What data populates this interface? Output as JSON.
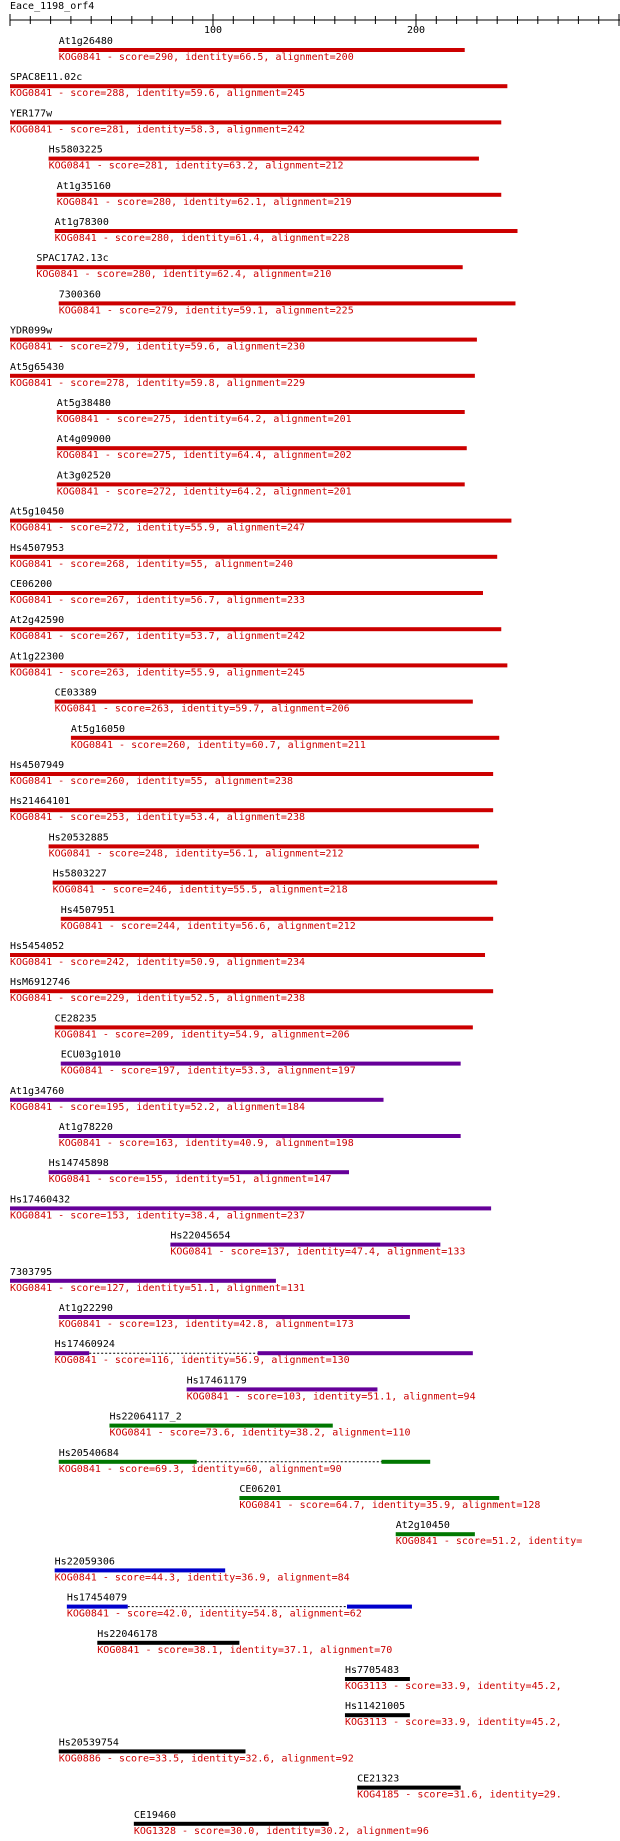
{
  "query": "Eace_1198_orf4",
  "ruler": {
    "ticks": [
      100,
      200
    ]
  },
  "colors": {
    "line": "#000000",
    "label": "#cc0000",
    "red": "#cc0000",
    "purple": "#660099",
    "green": "#007700",
    "blue": "#0000cc",
    "black": "#000000"
  },
  "hits": [
    {
      "name": "At1g26480",
      "desc": "KOG0841 - score=290, identity=66.5, alignment=200",
      "color": "red",
      "segments": [
        [
          24,
          224
        ]
      ]
    },
    {
      "name": "SPAC8E11.02c",
      "desc": "KOG0841 - score=288, identity=59.6, alignment=245",
      "color": "red",
      "segments": [
        [
          0,
          245
        ]
      ]
    },
    {
      "name": "YER177w",
      "desc": "KOG0841 - score=281, identity=58.3, alignment=242",
      "color": "red",
      "segments": [
        [
          0,
          242
        ]
      ]
    },
    {
      "name": "Hs5803225",
      "desc": "KOG0841 - score=281, identity=63.2, alignment=212",
      "color": "red",
      "segments": [
        [
          19,
          231
        ]
      ]
    },
    {
      "name": "At1g35160",
      "desc": "KOG0841 - score=280, identity=62.1, alignment=219",
      "color": "red",
      "segments": [
        [
          23,
          242
        ]
      ]
    },
    {
      "name": "At1g78300",
      "desc": "KOG0841 - score=280, identity=61.4, alignment=228",
      "color": "red",
      "segments": [
        [
          22,
          250
        ]
      ]
    },
    {
      "name": "SPAC17A2.13c",
      "desc": "KOG0841 - score=280, identity=62.4, alignment=210",
      "color": "red",
      "segments": [
        [
          13,
          223
        ]
      ]
    },
    {
      "name": "7300360",
      "desc": "KOG0841 - score=279, identity=59.1, alignment=225",
      "color": "red",
      "segments": [
        [
          24,
          249
        ]
      ]
    },
    {
      "name": "YDR099w",
      "desc": "KOG0841 - score=279, identity=59.6, alignment=230",
      "color": "red",
      "segments": [
        [
          0,
          230
        ]
      ]
    },
    {
      "name": "At5g65430",
      "desc": "KOG0841 - score=278, identity=59.8, alignment=229",
      "color": "red",
      "segments": [
        [
          0,
          229
        ]
      ]
    },
    {
      "name": "At5g38480",
      "desc": "KOG0841 - score=275, identity=64.2, alignment=201",
      "color": "red",
      "segments": [
        [
          23,
          224
        ]
      ]
    },
    {
      "name": "At4g09000",
      "desc": "KOG0841 - score=275, identity=64.4, alignment=202",
      "color": "red",
      "segments": [
        [
          23,
          225
        ]
      ]
    },
    {
      "name": "At3g02520",
      "desc": "KOG0841 - score=272, identity=64.2, alignment=201",
      "color": "red",
      "segments": [
        [
          23,
          224
        ]
      ]
    },
    {
      "name": "At5g10450",
      "desc": "KOG0841 - score=272, identity=55.9, alignment=247",
      "color": "red",
      "segments": [
        [
          0,
          247
        ]
      ]
    },
    {
      "name": "Hs4507953",
      "desc": "KOG0841 - score=268, identity=55, alignment=240",
      "color": "red",
      "segments": [
        [
          0,
          240
        ]
      ]
    },
    {
      "name": "CE06200",
      "desc": "KOG0841 - score=267, identity=56.7, alignment=233",
      "color": "red",
      "segments": [
        [
          0,
          233
        ]
      ]
    },
    {
      "name": "At2g42590",
      "desc": "KOG0841 - score=267, identity=53.7, alignment=242",
      "color": "red",
      "segments": [
        [
          0,
          242
        ]
      ]
    },
    {
      "name": "At1g22300",
      "desc": "KOG0841 - score=263, identity=55.9, alignment=245",
      "color": "red",
      "segments": [
        [
          0,
          245
        ]
      ]
    },
    {
      "name": "CE03389",
      "desc": "KOG0841 - score=263, identity=59.7, alignment=206",
      "color": "red",
      "segments": [
        [
          22,
          228
        ]
      ]
    },
    {
      "name": "At5g16050",
      "desc": "KOG0841 - score=260, identity=60.7, alignment=211",
      "color": "red",
      "segments": [
        [
          30,
          241
        ]
      ]
    },
    {
      "name": "Hs4507949",
      "desc": "KOG0841 - score=260, identity=55, alignment=238",
      "color": "red",
      "segments": [
        [
          0,
          238
        ]
      ]
    },
    {
      "name": "Hs21464101",
      "desc": "KOG0841 - score=253, identity=53.4, alignment=238",
      "color": "red",
      "segments": [
        [
          0,
          238
        ]
      ]
    },
    {
      "name": "Hs20532885",
      "desc": "KOG0841 - score=248, identity=56.1, alignment=212",
      "color": "red",
      "segments": [
        [
          19,
          231
        ]
      ]
    },
    {
      "name": "Hs5803227",
      "desc": "KOG0841 - score=246, identity=55.5, alignment=218",
      "color": "red",
      "segments": [
        [
          21,
          240
        ]
      ]
    },
    {
      "name": "Hs4507951",
      "desc": "KOG0841 - score=244, identity=56.6, alignment=212",
      "color": "red",
      "segments": [
        [
          25,
          238
        ]
      ]
    },
    {
      "name": "Hs5454052",
      "desc": "KOG0841 - score=242, identity=50.9, alignment=234",
      "color": "red",
      "segments": [
        [
          0,
          234
        ]
      ]
    },
    {
      "name": "HsM6912746",
      "desc": "KOG0841 - score=229, identity=52.5, alignment=238",
      "color": "red",
      "segments": [
        [
          0,
          238
        ]
      ]
    },
    {
      "name": "CE28235",
      "desc": "KOG0841 - score=209, identity=54.9, alignment=206",
      "color": "red",
      "segments": [
        [
          22,
          228
        ]
      ]
    },
    {
      "name": "ECU03g1010",
      "desc": "KOG0841 - score=197, identity=53.3, alignment=197",
      "color": "purple",
      "segments": [
        [
          25,
          222
        ]
      ]
    },
    {
      "name": "At1g34760",
      "desc": "KOG0841 - score=195, identity=52.2, alignment=184",
      "color": "purple",
      "segments": [
        [
          0,
          184
        ]
      ]
    },
    {
      "name": "At1g78220",
      "desc": "KOG0841 - score=163, identity=40.9, alignment=198",
      "color": "purple",
      "segments": [
        [
          24,
          222
        ]
      ]
    },
    {
      "name": "Hs14745898",
      "desc": "KOG0841 - score=155, identity=51, alignment=147",
      "color": "purple",
      "segments": [
        [
          19,
          167
        ]
      ]
    },
    {
      "name": "Hs17460432",
      "desc": "KOG0841 - score=153, identity=38.4, alignment=237",
      "color": "purple",
      "segments": [
        [
          0,
          237
        ]
      ]
    },
    {
      "name": "Hs22045654",
      "desc": "KOG0841 - score=137, identity=47.4, alignment=133",
      "color": "purple",
      "segments": [
        [
          79,
          212
        ]
      ]
    },
    {
      "name": "7303795",
      "desc": "KOG0841 - score=127, identity=51.1, alignment=131",
      "color": "purple",
      "segments": [
        [
          0,
          131
        ]
      ]
    },
    {
      "name": "At1g22290",
      "desc": "KOG0841 - score=123, identity=42.8, alignment=173",
      "color": "purple",
      "segments": [
        [
          24,
          197
        ]
      ]
    },
    {
      "name": "Hs17460924",
      "desc": "KOG0841 - score=116, identity=56.9, alignment=130",
      "color": "purple",
      "segments": [
        [
          22,
          39
        ],
        [
          122,
          228
        ]
      ]
    },
    {
      "name": "Hs17461179",
      "desc": "KOG0841 - score=103, identity=51.1, alignment=94",
      "color": "purple",
      "segments": [
        [
          87,
          181
        ]
      ]
    },
    {
      "name": "Hs22064117_2",
      "desc": "KOG0841 - score=73.6, identity=38.2, alignment=110",
      "color": "green",
      "segments": [
        [
          49,
          159
        ]
      ]
    },
    {
      "name": "Hs20540684",
      "desc": "KOG0841 - score=69.3, identity=60, alignment=90",
      "color": "green",
      "segments": [
        [
          24,
          92
        ],
        [
          183,
          207
        ]
      ]
    },
    {
      "name": "CE06201",
      "desc": "KOG0841 - score=64.7, identity=35.9, alignment=128",
      "color": "green",
      "segments": [
        [
          113,
          241
        ]
      ]
    },
    {
      "name": "At2g10450",
      "desc": "KOG0841 - score=51.2, identity=",
      "color": "green",
      "segments": [
        [
          190,
          229
        ]
      ]
    },
    {
      "name": "Hs22059306",
      "desc": "KOG0841 - score=44.3, identity=36.9, alignment=84",
      "color": "blue",
      "segments": [
        [
          22,
          106
        ]
      ]
    },
    {
      "name": "Hs17454079",
      "desc": "KOG0841 - score=42.0, identity=54.8, alignment=62",
      "color": "blue",
      "segments": [
        [
          28,
          58
        ],
        [
          166,
          198
        ]
      ]
    },
    {
      "name": "Hs22046178",
      "desc": "KOG0841 - score=38.1, identity=37.1, alignment=70",
      "color": "black",
      "segments": [
        [
          43,
          113
        ]
      ]
    },
    {
      "name": "Hs7705483",
      "desc": "KOG3113 - score=33.9, identity=45.2,",
      "color": "black",
      "segments": [
        [
          165,
          197
        ]
      ]
    },
    {
      "name": "Hs11421005",
      "desc": "KOG3113 - score=33.9, identity=45.2,",
      "color": "black",
      "segments": [
        [
          165,
          197
        ]
      ]
    },
    {
      "name": "Hs20539754",
      "desc": "KOG0886 - score=33.5, identity=32.6, alignment=92",
      "color": "black",
      "segments": [
        [
          24,
          116
        ]
      ]
    },
    {
      "name": "CE21323",
      "desc": "KOG4185 - score=31.6, identity=29.",
      "color": "black",
      "segments": [
        [
          171,
          222
        ]
      ]
    },
    {
      "name": "CE19460",
      "desc": "KOG1328 - score=30.0, identity=30.2, alignment=96",
      "color": "black",
      "segments": [
        [
          61,
          157
        ]
      ]
    }
  ]
}
